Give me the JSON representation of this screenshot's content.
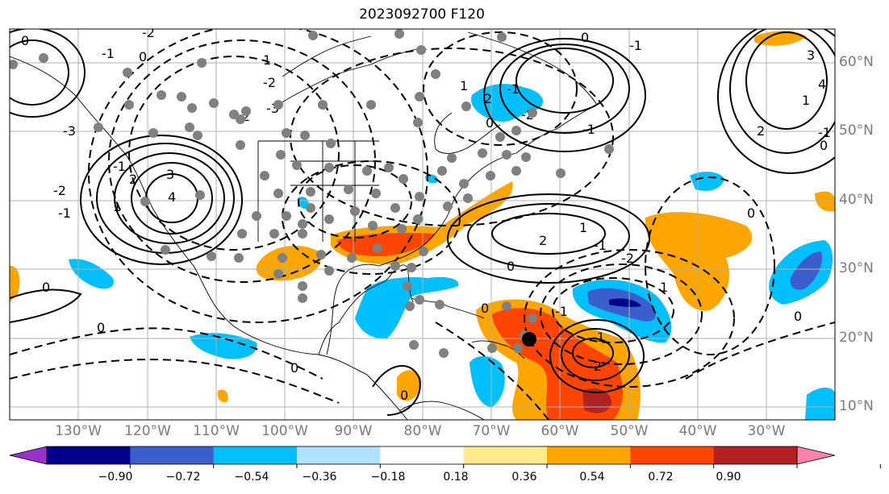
{
  "title": "2023092700 F120",
  "lat_labels": [
    "60°N",
    "50°N",
    "40°N",
    "30°N",
    "20°N",
    "10°N"
  ],
  "lon_labels": [
    "130°W",
    "120°W",
    "110°W",
    "100°W",
    "90°W",
    "80°W",
    "70°W",
    "60°W",
    "50°W",
    "40°W",
    "30°W"
  ],
  "colorbar": {
    "ticks": [
      "−0.90",
      "−0.72",
      "−0.54",
      "−0.36",
      "−0.18",
      "0.18",
      "0.36",
      "0.54",
      "0.72",
      "0.90"
    ],
    "colors": [
      "#9932cc",
      "#00008b",
      "#3a5fcd",
      "#00bfff",
      "#b0e2ff",
      "#ffffff",
      "#ffeb8a",
      "#ffa500",
      "#ff4500",
      "#b22222",
      "#ff82ab"
    ]
  },
  "contour_labels": [
    "0",
    "-1",
    "0",
    "-2",
    "-3",
    "-2",
    "-1",
    "0",
    "-1",
    "-2",
    "-3",
    "1",
    "2",
    "3",
    "4",
    "0",
    "1",
    "2",
    "-1",
    "-2",
    "0",
    "-1",
    "0",
    "3",
    "4",
    "-1",
    "2",
    "1",
    "0",
    "-1",
    "-2",
    "2",
    "1",
    "0",
    "-1",
    "0",
    "-1",
    "-2",
    "0",
    "1",
    "2",
    "1",
    "0",
    "-1",
    "0",
    "0"
  ],
  "map_colors": {
    "orange": "#ffa500",
    "red_orange": "#ff4500",
    "dark_red": "#b22222",
    "sky_blue": "#00bfff",
    "royal_blue": "#3a5fcd",
    "navy": "#00008b",
    "station_gray": "#808080",
    "storm_center": "#000000"
  }
}
